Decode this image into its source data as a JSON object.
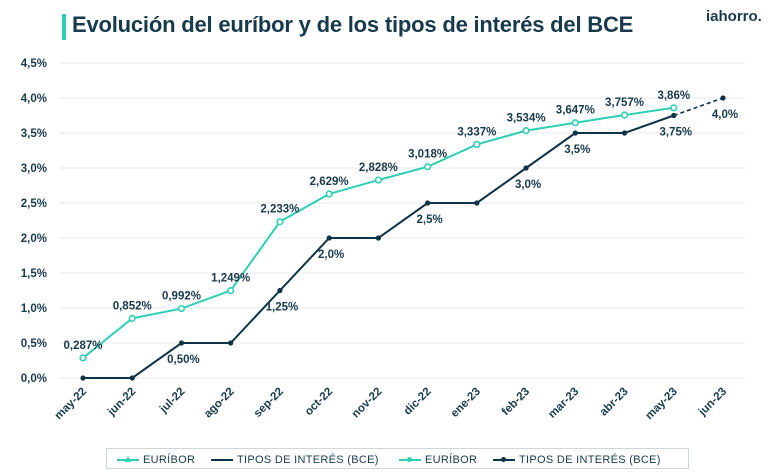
{
  "header": {
    "title": "Evolución del euríbor y de los tipos de interés del BCE",
    "brand": "iahorro."
  },
  "colors": {
    "euribor": "#2dcfb3",
    "bce": "#0f3346",
    "title": "#173a4c",
    "grid": "#e6e9eb"
  },
  "chart_data": {
    "type": "line",
    "title": "Evolución del euríbor y de los tipos de interés del BCE",
    "xlabel": "",
    "ylabel": "",
    "categories": [
      "may-22",
      "jun-22",
      "jul-22",
      "ago-22",
      "sep-22",
      "oct-22",
      "nov-22",
      "dic-22",
      "ene-23",
      "feb-23",
      "mar-23",
      "abr-23",
      "may-23",
      "jun-23"
    ],
    "ylim": [
      0,
      4.5
    ],
    "yticks": [
      "0,0%",
      "0,5%",
      "1,0%",
      "1,5%",
      "2,0%",
      "2,5%",
      "3,0%",
      "3,5%",
      "4,0%",
      "4,5%"
    ],
    "ytick_values": [
      0,
      0.5,
      1.0,
      1.5,
      2.0,
      2.5,
      3.0,
      3.5,
      4.0,
      4.5
    ],
    "grid": true,
    "legend_position": "bottom",
    "series": [
      {
        "name": "EURÍBOR",
        "values": [
          0.287,
          0.852,
          0.992,
          1.249,
          2.233,
          2.629,
          2.828,
          3.018,
          3.337,
          3.534,
          3.647,
          3.757,
          3.86,
          null
        ],
        "labels": [
          "0,287%",
          "0,852%",
          "0,992%",
          "1,249%",
          "2,233%",
          "2,629%",
          "2,828%",
          "3,018%",
          "3,337%",
          "3,534%",
          "3,647%",
          "3,757%",
          "3,86%",
          ""
        ]
      },
      {
        "name": "TIPOS DE INTERÉS (BCE)",
        "values": [
          0,
          0,
          0.5,
          0.5,
          1.25,
          2.0,
          2.0,
          2.5,
          2.5,
          3.0,
          3.5,
          3.5,
          3.75,
          4.0
        ],
        "labels": [
          "",
          "",
          "0,50%",
          "",
          "1,25%",
          "2,0%",
          "",
          "2,5%",
          "",
          "3,0%",
          "3,5%",
          "",
          "3,75%",
          "4,0%"
        ],
        "projected_from_index": 12
      }
    ],
    "legend": [
      "EURÍBOR",
      "TIPOS DE INTERÉS (BCE)",
      "EURÍBOR",
      "TIPOS DE INTERÉS (BCE)"
    ]
  }
}
